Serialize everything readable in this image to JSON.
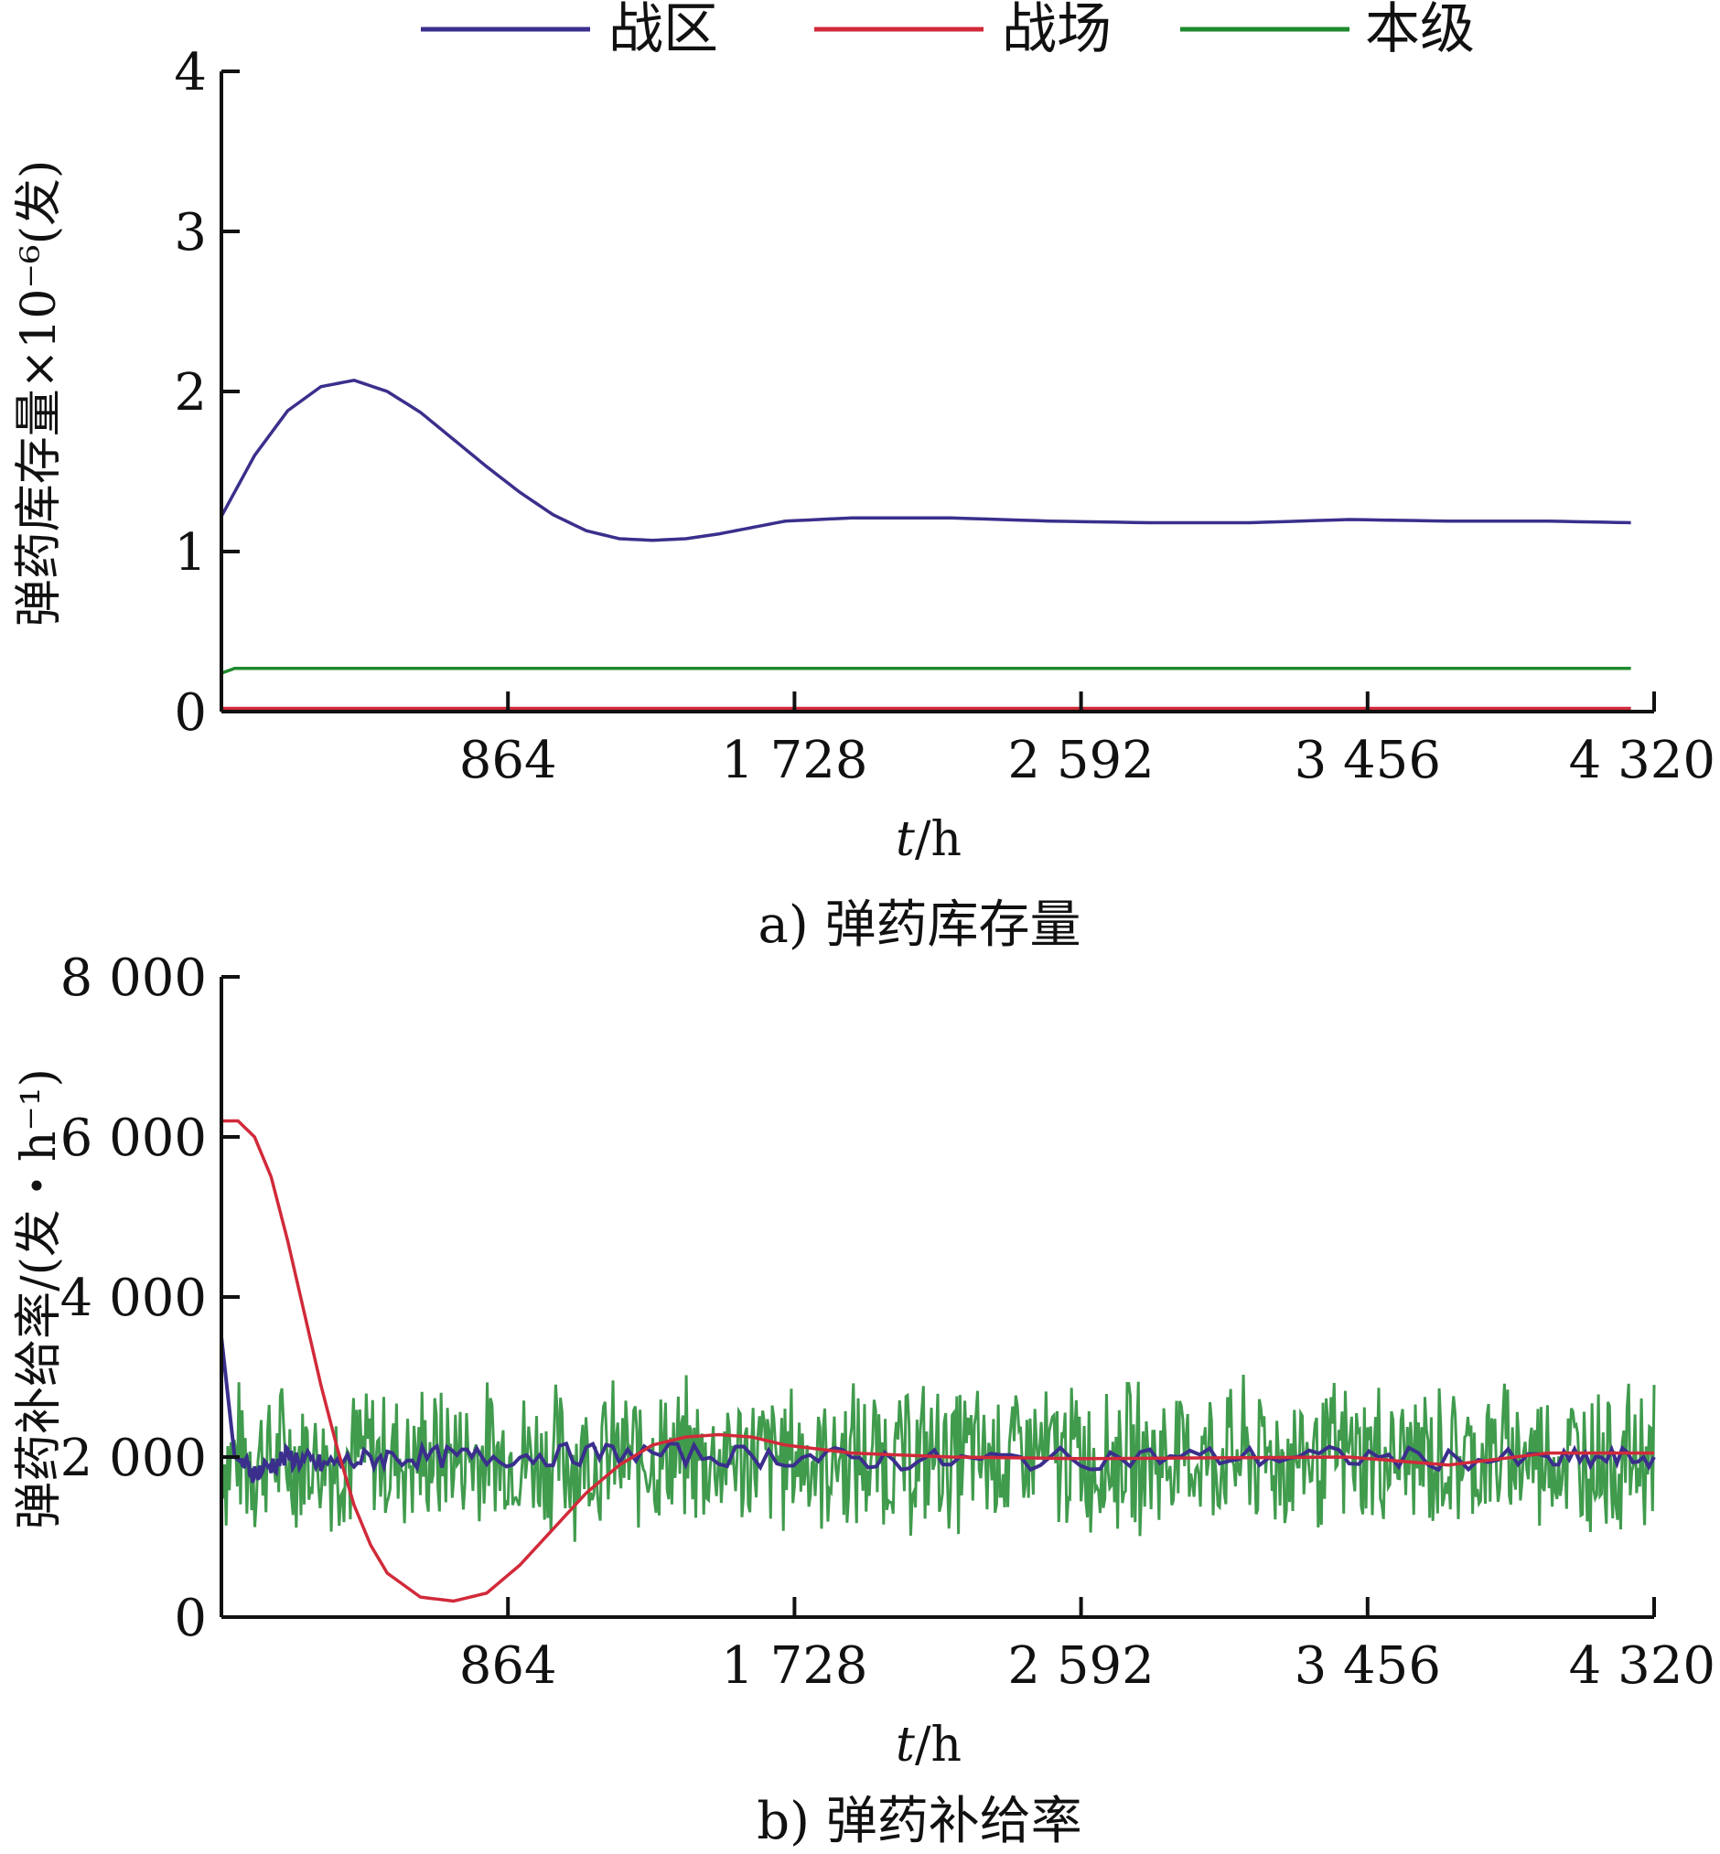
{
  "legend": [
    {
      "name": "战区",
      "color": "#3a2f8c"
    },
    {
      "name": "战场",
      "color": "#d12a3a"
    },
    {
      "name": "本级",
      "color": "#1e8a2e"
    }
  ],
  "chart_data": [
    {
      "type": "line",
      "caption": "a) 弹药库存量",
      "xlabel_italic": "t",
      "xlabel_rest": "/h",
      "ylabel": "弹药库存量×10⁻⁶(发)",
      "xlim": [
        0,
        4320
      ],
      "ylim": [
        0,
        4
      ],
      "xticks": [
        864,
        1728,
        2592,
        3456,
        4320
      ],
      "xtick_labels": [
        "864",
        "1 728",
        "2 592",
        "3 456",
        "4 320"
      ],
      "yticks": [
        0,
        1,
        2,
        3,
        4
      ],
      "ytick_labels": [
        "0",
        "1",
        "2",
        "3",
        "4"
      ],
      "grid": false,
      "legend_position": "top",
      "series": [
        {
          "name": "战区",
          "color": "#3a2f8c",
          "x": [
            0,
            100,
            200,
            300,
            400,
            500,
            600,
            700,
            800,
            900,
            1000,
            1100,
            1200,
            1300,
            1400,
            1500,
            1600,
            1700,
            1900,
            2200,
            2500,
            2800,
            3100,
            3400,
            3700,
            4000,
            4250
          ],
          "y": [
            1.22,
            1.6,
            1.88,
            2.03,
            2.07,
            2.0,
            1.87,
            1.7,
            1.53,
            1.37,
            1.23,
            1.13,
            1.08,
            1.07,
            1.08,
            1.11,
            1.15,
            1.19,
            1.21,
            1.21,
            1.19,
            1.18,
            1.18,
            1.2,
            1.19,
            1.19,
            1.18
          ]
        },
        {
          "name": "战场",
          "color": "#d12a3a",
          "x": [
            0,
            4250
          ],
          "y": [
            0.02,
            0.02
          ]
        },
        {
          "name": "本级",
          "color": "#1e8a2e",
          "x": [
            0,
            40,
            4250
          ],
          "y": [
            0.24,
            0.27,
            0.27
          ]
        }
      ]
    },
    {
      "type": "line",
      "caption": "b) 弹药补给率",
      "xlabel_italic": "t",
      "xlabel_rest": "/h",
      "ylabel": "弹药补给率/(发・h⁻¹)",
      "xlim": [
        0,
        4320
      ],
      "ylim": [
        0,
        8000
      ],
      "xticks": [
        864,
        1728,
        2592,
        3456,
        4320
      ],
      "xtick_labels": [
        "864",
        "1 728",
        "2 592",
        "3 456",
        "4 320"
      ],
      "yticks": [
        0,
        2000,
        4000,
        6000,
        8000
      ],
      "ytick_labels": [
        "0",
        "2 000",
        "4 000",
        "6 000",
        "8 000"
      ],
      "grid": false,
      "series": [
        {
          "name": "战区",
          "color": "#3a2f8c",
          "x": [
            0,
            40,
            100,
            200,
            300,
            500,
            800,
            1200,
            1700,
            2200,
            2800,
            3400,
            4000,
            4320
          ],
          "y": [
            3500,
            2000,
            1800,
            2000,
            1900,
            2000,
            2000,
            2050,
            2000,
            1950,
            2000,
            2000,
            1950,
            2000
          ]
        },
        {
          "name": "战场",
          "color": "#d12a3a",
          "x": [
            0,
            50,
            100,
            150,
            200,
            250,
            300,
            350,
            400,
            450,
            500,
            600,
            700,
            800,
            900,
            1000,
            1100,
            1200,
            1300,
            1400,
            1500,
            1600,
            1700,
            1900,
            2200,
            2600,
            3000,
            3400,
            3700,
            4000,
            4320
          ],
          "y": [
            6200,
            6200,
            6000,
            5500,
            4700,
            3800,
            2900,
            2100,
            1400,
            900,
            550,
            250,
            200,
            300,
            650,
            1100,
            1550,
            1900,
            2150,
            2250,
            2280,
            2250,
            2150,
            2050,
            2000,
            1980,
            1990,
            2000,
            1900,
            2050,
            2050
          ]
        },
        {
          "name": "本级",
          "color": "#1e8a2e",
          "pattern": "noise",
          "mean": 2000,
          "spread": 900,
          "x": [
            0,
            4320
          ]
        }
      ]
    }
  ]
}
